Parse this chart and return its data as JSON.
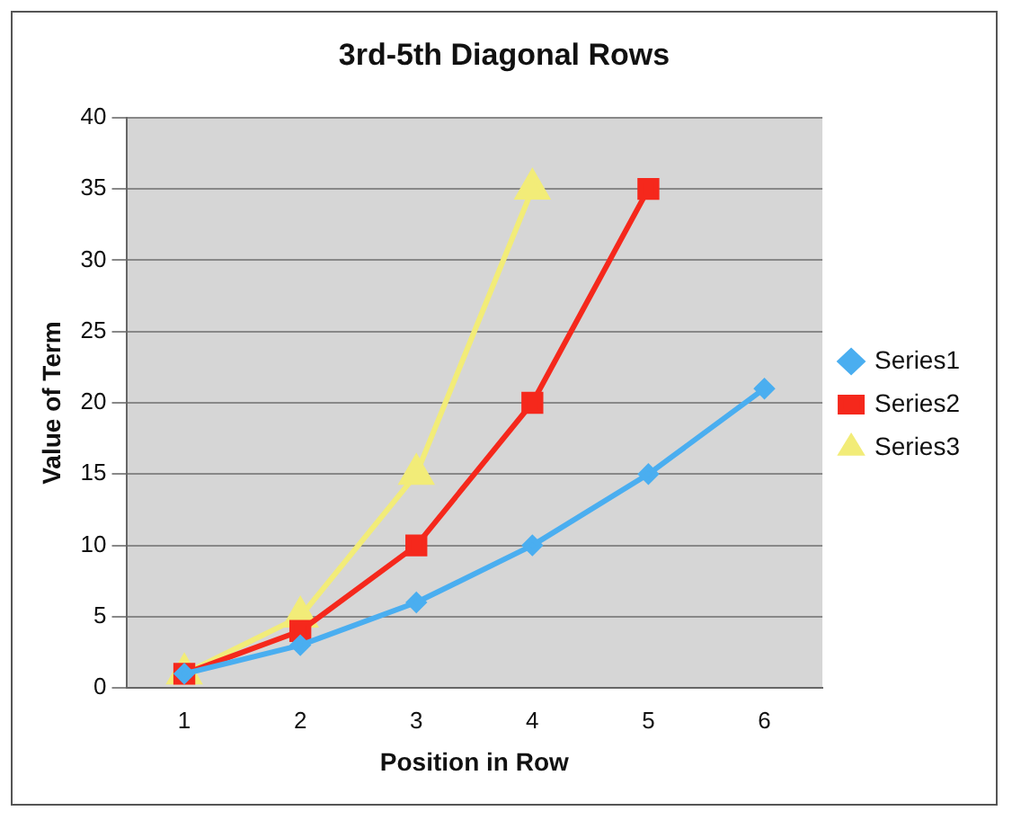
{
  "chart_data": {
    "type": "line",
    "title": "3rd-5th Diagonal Rows",
    "xlabel": "Position in Row",
    "ylabel": "Value of Term",
    "categories": [
      "1",
      "2",
      "3",
      "4",
      "5",
      "6"
    ],
    "series": [
      {
        "name": "Series1",
        "color": "#4aaef0",
        "values": [
          1,
          3,
          6,
          10,
          15,
          21
        ],
        "marker": "diamond"
      },
      {
        "name": "Series2",
        "color": "#f5281c",
        "values": [
          1,
          4,
          10,
          20,
          35,
          null
        ],
        "marker": "square"
      },
      {
        "name": "Series3",
        "color": "#f2ec78",
        "values": [
          1,
          5,
          15,
          35,
          null,
          null
        ],
        "marker": "triangle"
      }
    ],
    "ylim": [
      0,
      40
    ],
    "yticks": [
      0,
      5,
      10,
      15,
      20,
      25,
      30,
      35,
      40
    ],
    "grid": "y",
    "legend": "right",
    "line_style": "solid"
  }
}
